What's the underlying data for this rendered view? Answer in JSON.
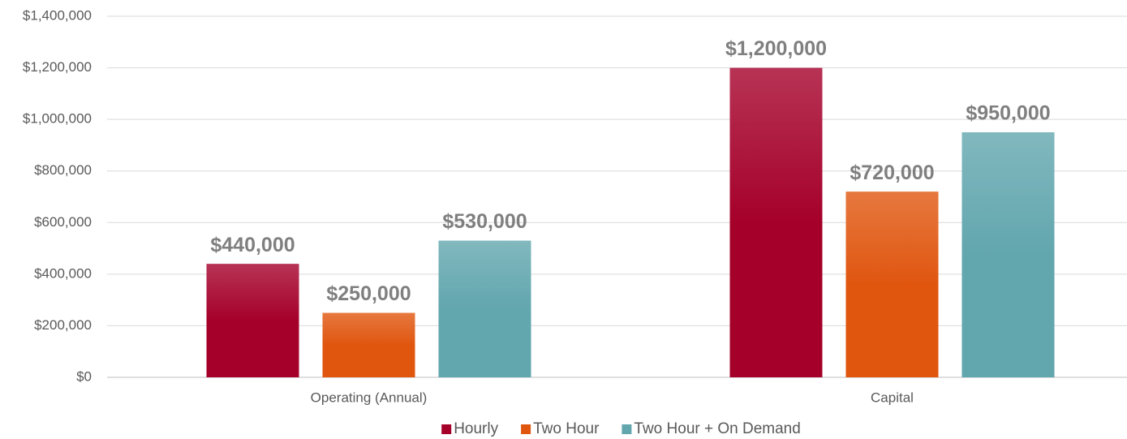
{
  "chart_data": {
    "type": "bar",
    "categories": [
      "Operating (Annual)",
      "Capital"
    ],
    "series": [
      {
        "name": "Hourly",
        "color": "#a5002a",
        "values": [
          440000,
          1200000
        ],
        "value_labels": [
          "$440,000",
          "$1,200,000"
        ]
      },
      {
        "name": "Two Hour",
        "color": "#e0560f",
        "values": [
          250000,
          720000
        ],
        "value_labels": [
          "$250,000",
          "$720,000"
        ]
      },
      {
        "name": "Two Hour + On Demand",
        "color": "#62a6ae",
        "values": [
          530000,
          950000
        ],
        "value_labels": [
          "$530,000",
          "$950,000"
        ]
      }
    ],
    "ylim": [
      0,
      1400000
    ],
    "yticks": [
      {
        "value": 0,
        "label": "$0"
      },
      {
        "value": 200000,
        "label": "$200,000"
      },
      {
        "value": 400000,
        "label": "$400,000"
      },
      {
        "value": 600000,
        "label": "$600,000"
      },
      {
        "value": 800000,
        "label": "$800,000"
      },
      {
        "value": 1000000,
        "label": "$1,000,000"
      },
      {
        "value": 1200000,
        "label": "$1,200,000"
      },
      {
        "value": 1400000,
        "label": "$1,400,000"
      }
    ],
    "grid": true,
    "legend": "bottom"
  }
}
